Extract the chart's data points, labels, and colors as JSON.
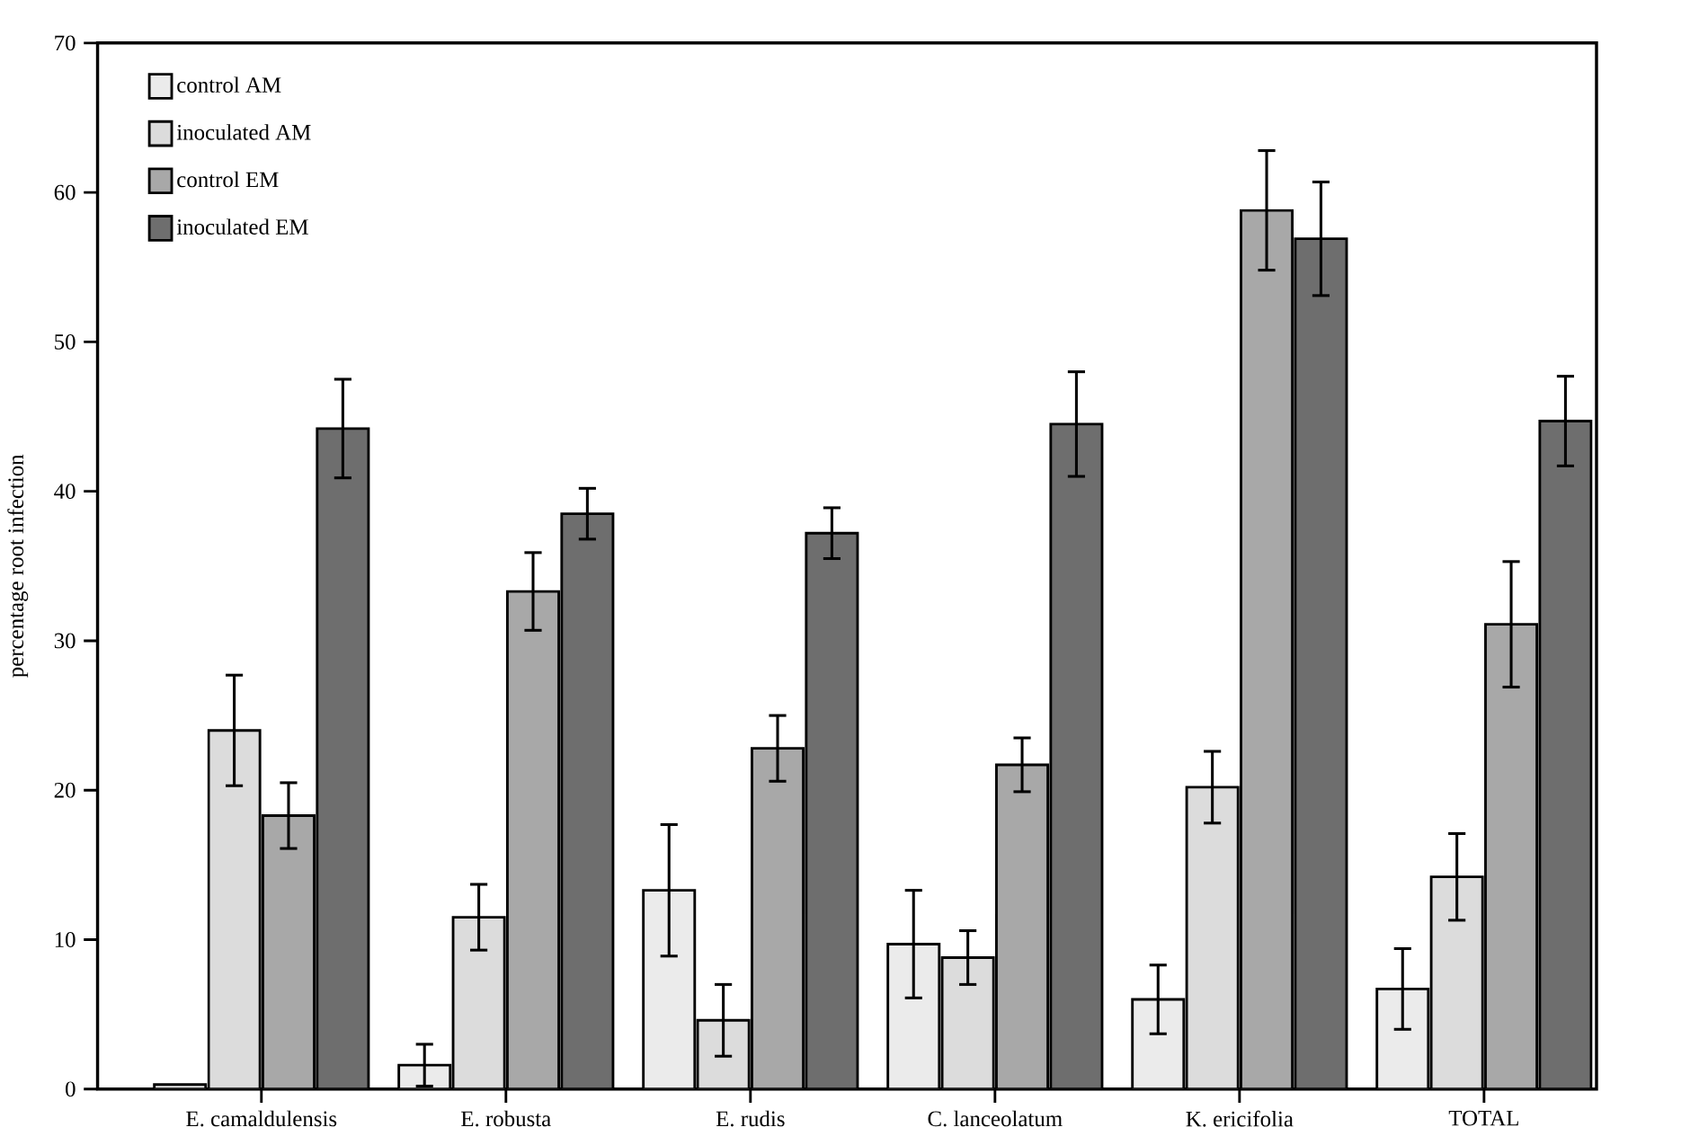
{
  "chart_data": {
    "type": "bar",
    "ylabel": "percentage root infection",
    "categories": [
      "E. camaldulensis",
      "E. robusta",
      "E. rudis",
      "C. lanceolatum",
      "K. ericifolia",
      "TOTAL"
    ],
    "series": [
      {
        "name": "control AM",
        "color": "#ebebeb",
        "values": [
          0.3,
          1.6,
          13.3,
          9.7,
          6.0,
          6.7
        ],
        "errors": [
          null,
          1.4,
          4.4,
          3.6,
          2.3,
          2.7
        ]
      },
      {
        "name": "inoculated AM",
        "color": "#dcdcdc",
        "values": [
          24.0,
          11.5,
          4.6,
          8.8,
          20.2,
          14.2
        ],
        "errors": [
          3.7,
          2.2,
          2.4,
          1.8,
          2.4,
          2.9
        ]
      },
      {
        "name": "control EM",
        "color": "#a8a8a8",
        "values": [
          18.3,
          33.3,
          22.8,
          21.7,
          58.8,
          31.1
        ],
        "errors": [
          2.2,
          2.6,
          2.2,
          1.8,
          4.0,
          4.2
        ]
      },
      {
        "name": "inoculated EM",
        "color": "#6e6e6e",
        "values": [
          44.2,
          38.5,
          37.2,
          44.5,
          56.9,
          44.7
        ],
        "errors": [
          3.3,
          1.7,
          1.7,
          3.5,
          3.8,
          3.0
        ]
      }
    ],
    "ylim": [
      0,
      70
    ],
    "yticks": [
      0,
      10,
      20,
      30,
      40,
      50,
      60,
      70
    ],
    "grid": false,
    "legend": "top left"
  }
}
